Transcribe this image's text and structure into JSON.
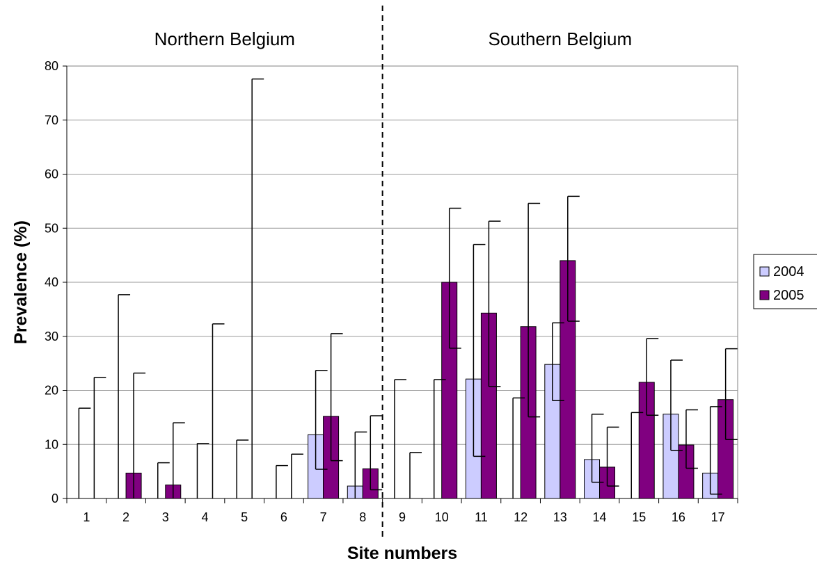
{
  "chart_data": {
    "type": "bar",
    "title": "",
    "xlabel": "Site numbers",
    "ylabel": "Prevalence (%)",
    "ylim": [
      0,
      80
    ],
    "yticks": [
      0,
      10,
      20,
      30,
      40,
      50,
      60,
      70,
      80
    ],
    "grid": true,
    "legend_position": "right",
    "categories": [
      "1",
      "2",
      "3",
      "4",
      "5",
      "6",
      "7",
      "8",
      "9",
      "10",
      "11",
      "12",
      "13",
      "14",
      "15",
      "16",
      "17"
    ],
    "regions": [
      {
        "label": "Northern Belgium",
        "sites": [
          "1",
          "2",
          "3",
          "4",
          "5",
          "6",
          "7",
          "8"
        ]
      },
      {
        "label": "Southern Belgium",
        "sites": [
          "9",
          "10",
          "11",
          "12",
          "13",
          "14",
          "15",
          "16",
          "17"
        ]
      }
    ],
    "divider_between": [
      "8",
      "9"
    ],
    "series": [
      {
        "name": "2004",
        "color": "#ccccff",
        "values": [
          0,
          0,
          0,
          0,
          0,
          0,
          11.8,
          2.3,
          0,
          0,
          22.1,
          0,
          24.8,
          7.2,
          0,
          15.6,
          4.7
        ],
        "error_lower": [
          0,
          0,
          0,
          0,
          0,
          0,
          5.4,
          0,
          0,
          0,
          7.8,
          0,
          18.1,
          3.0,
          0,
          8.9,
          0.8
        ],
        "error_upper": [
          16.7,
          37.7,
          6.6,
          10.2,
          10.8,
          6.1,
          23.7,
          12.3,
          22.0,
          22.0,
          47.0,
          18.6,
          32.5,
          15.6,
          15.9,
          25.6,
          17.0
        ]
      },
      {
        "name": "2005",
        "color": "#800080",
        "values": [
          0,
          4.7,
          2.5,
          0,
          0,
          0,
          15.2,
          5.5,
          0,
          40.0,
          34.3,
          31.8,
          44.0,
          5.8,
          21.5,
          9.9,
          18.3
        ],
        "error_lower": [
          0,
          0,
          0,
          0,
          0,
          0,
          7.0,
          1.6,
          0,
          27.8,
          20.7,
          15.1,
          32.8,
          2.3,
          15.4,
          5.6,
          10.9
        ],
        "error_upper": [
          22.4,
          23.2,
          14.0,
          32.3,
          77.6,
          8.2,
          30.5,
          15.3,
          8.5,
          53.7,
          51.3,
          54.6,
          55.9,
          13.2,
          29.6,
          16.4,
          27.7
        ]
      }
    ]
  }
}
